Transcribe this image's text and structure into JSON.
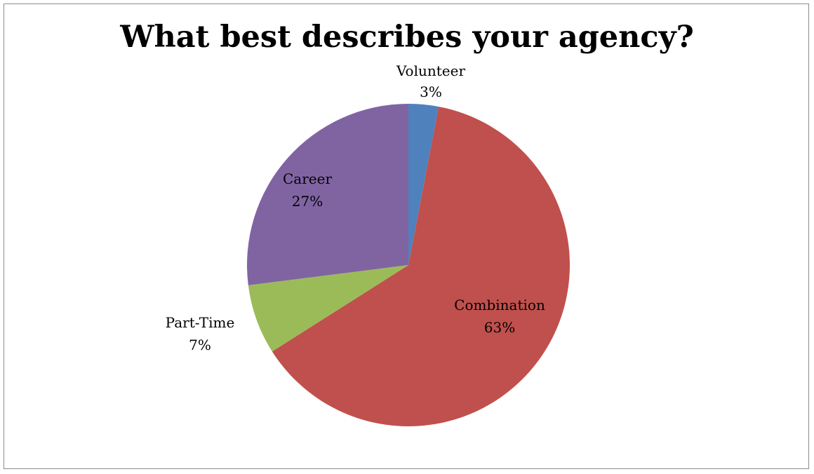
{
  "chart_data": {
    "type": "pie",
    "title": "What best describes your agency?",
    "slices": [
      {
        "label": "Volunteer",
        "value": 3,
        "value_label": "3%",
        "color": "#4f81bd"
      },
      {
        "label": "Combination",
        "value": 63,
        "value_label": "63%",
        "color": "#c0504d"
      },
      {
        "label": "Part-Time",
        "value": 7,
        "value_label": "7%",
        "color": "#9bbb59"
      },
      {
        "label": "Career",
        "value": 27,
        "value_label": "27%",
        "color": "#8064a2"
      }
    ],
    "start_angle": "12 o'clock",
    "direction": "clockwise",
    "legend": "none",
    "data_labels": true
  }
}
